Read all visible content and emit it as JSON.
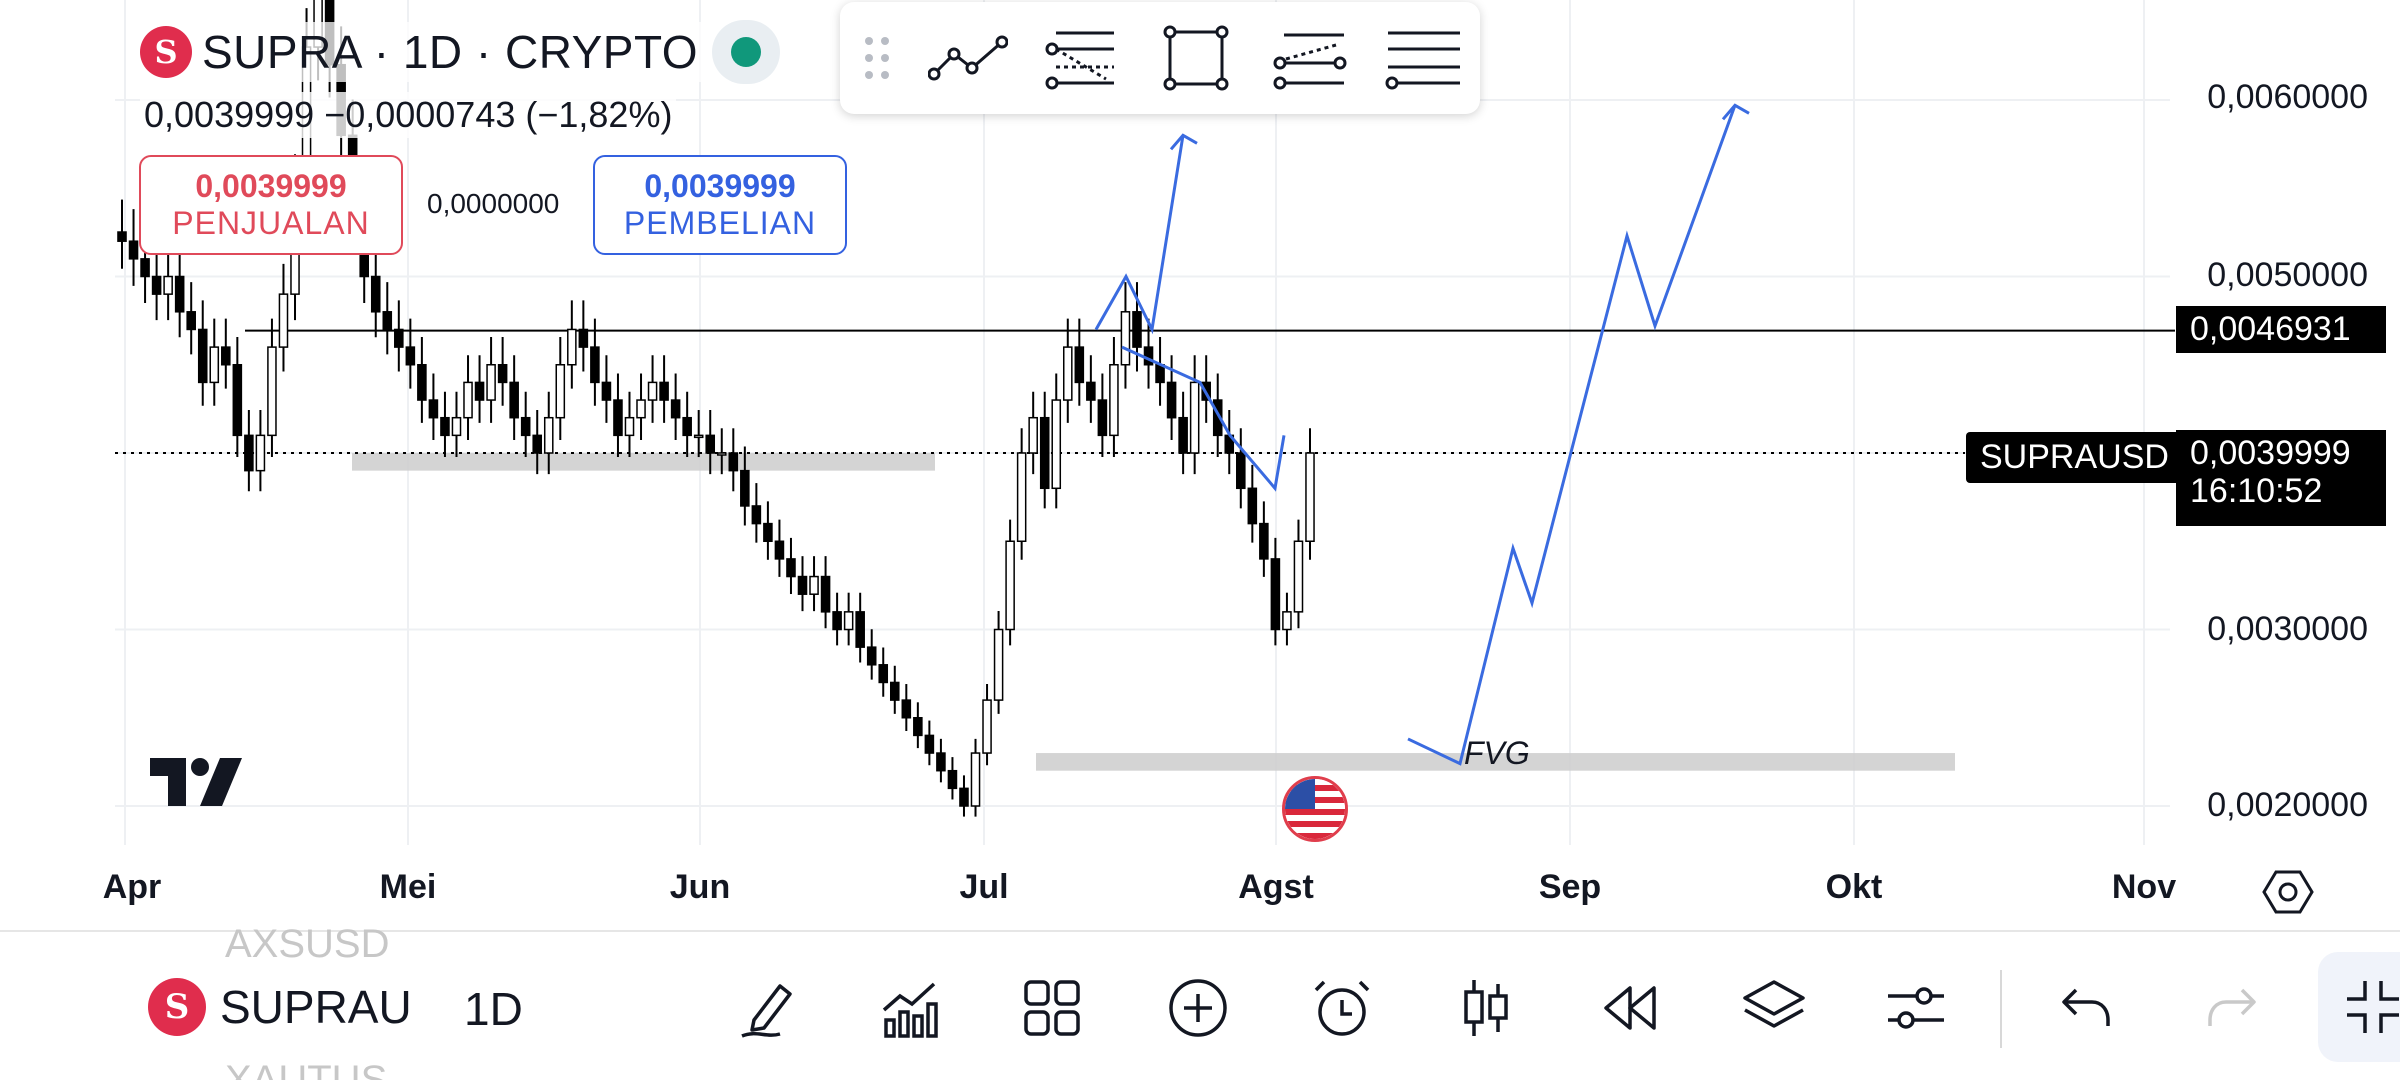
{
  "header": {
    "symbol_logo": "S",
    "symbol_title": "SUPRA · 1D · CRYPTO",
    "price_line": "0,0039999  −0,0000743 (−1,82%)"
  },
  "trade": {
    "sell_price": "0,0039999",
    "sell_label": "PENJUALAN",
    "spread": "0,0000000",
    "buy_price": "0,0039999",
    "buy_label": "PEMBELIAN"
  },
  "drawing_toolbar": {
    "tools": [
      "trend-line-icon",
      "fib-retracement-icon",
      "rectangle-icon",
      "parallel-channel-icon",
      "horizontal-lines-icon"
    ]
  },
  "y_axis": {
    "labels": [
      "0,0060000",
      "0,0050000",
      "0,0030000",
      "0,0020000"
    ],
    "highlighted_level": "0,0046931",
    "current_price": "0,0039999",
    "countdown": "16:10:52",
    "symbol_tag": "SUPRAUSD"
  },
  "x_axis": {
    "labels": [
      "Apr",
      "Mei",
      "Jun",
      "Jul",
      "Agst",
      "Sep",
      "Okt",
      "Nov"
    ]
  },
  "annotations": {
    "fvg_label": "FVG"
  },
  "bottom_bar": {
    "symbol_label": "SUPRAU",
    "ghost_above": "AXSUSD",
    "ghost_below": "XAUTUS",
    "interval": "1D",
    "icons": [
      "pencil-icon",
      "indicators-icon",
      "layouts-icon",
      "add-icon",
      "alarm-icon",
      "candles-icon",
      "replay-icon",
      "layers-icon",
      "settings-sliders-icon",
      "undo-icon",
      "redo-icon",
      "fullscreen-icon"
    ]
  },
  "colors": {
    "sell": "#e04a5a",
    "buy": "#3461e0",
    "projection_line": "#3a6be0",
    "zone": "#cccccc",
    "live": "#10987b"
  },
  "chart_data": {
    "type": "candlestick",
    "symbol": "SUPRAUSD",
    "interval": "1D",
    "y_range": [
      0.0018,
      0.0065
    ],
    "x_range_labels": [
      "Apr",
      "Mei",
      "Jun",
      "Jul",
      "Agst",
      "Sep",
      "Okt",
      "Nov"
    ],
    "closes": [
      0.0052,
      0.0051,
      0.005,
      0.0049,
      0.005,
      0.0048,
      0.0047,
      0.0044,
      0.0046,
      0.0045,
      0.0041,
      0.0039,
      0.0041,
      0.0046,
      0.0049,
      0.0055,
      0.0063,
      0.0066,
      0.0062,
      0.0058,
      0.0054,
      0.005,
      0.0048,
      0.0047,
      0.0046,
      0.0045,
      0.0043,
      0.0042,
      0.0041,
      0.0042,
      0.0044,
      0.0043,
      0.0045,
      0.0044,
      0.0042,
      0.0041,
      0.004,
      0.0042,
      0.0045,
      0.0047,
      0.0046,
      0.0044,
      0.0043,
      0.0041,
      0.0042,
      0.0043,
      0.0044,
      0.0043,
      0.0042,
      0.0041,
      0.0041,
      0.004,
      0.004,
      0.0039,
      0.0037,
      0.0036,
      0.0035,
      0.0034,
      0.0033,
      0.0032,
      0.0033,
      0.0031,
      0.003,
      0.0031,
      0.0029,
      0.0028,
      0.0027,
      0.0026,
      0.0025,
      0.0024,
      0.0023,
      0.0022,
      0.0021,
      0.002,
      0.0023,
      0.0026,
      0.003,
      0.0035,
      0.004,
      0.0042,
      0.0038,
      0.0043,
      0.0046,
      0.0044,
      0.0043,
      0.0041,
      0.0045,
      0.0048,
      0.0046,
      0.0045,
      0.0044,
      0.0042,
      0.004,
      0.0044,
      0.0043,
      0.0041,
      0.004,
      0.0038,
      0.0036,
      0.0034,
      0.003,
      0.0031,
      0.0035,
      0.004
    ],
    "horizontal_level": 0.0046931,
    "current_price": 0.0039999,
    "zones": [
      {
        "name": "support-zone",
        "from_label": "Mei",
        "to_label": "Jun",
        "low": 0.0039,
        "high": 0.004
      },
      {
        "name": "FVG",
        "from_label": "Jul",
        "to_label": "Okt",
        "low": 0.0022,
        "high": 0.0023
      }
    ],
    "projection": [
      0.00238,
      0.00224,
      0.00346,
      0.00315,
      0.00523,
      0.00472,
      0.00597
    ]
  }
}
